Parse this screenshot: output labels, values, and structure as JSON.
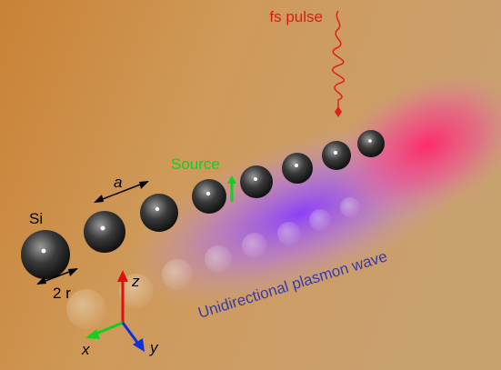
{
  "labels": {
    "pulse": "fs pulse",
    "source": "Source",
    "spacing": "a",
    "material": "Si",
    "diameter": "2 r",
    "axis_z": "z",
    "axis_x": "x",
    "axis_y": "y",
    "wave": "Unidirectional plasmon wave"
  }
}
